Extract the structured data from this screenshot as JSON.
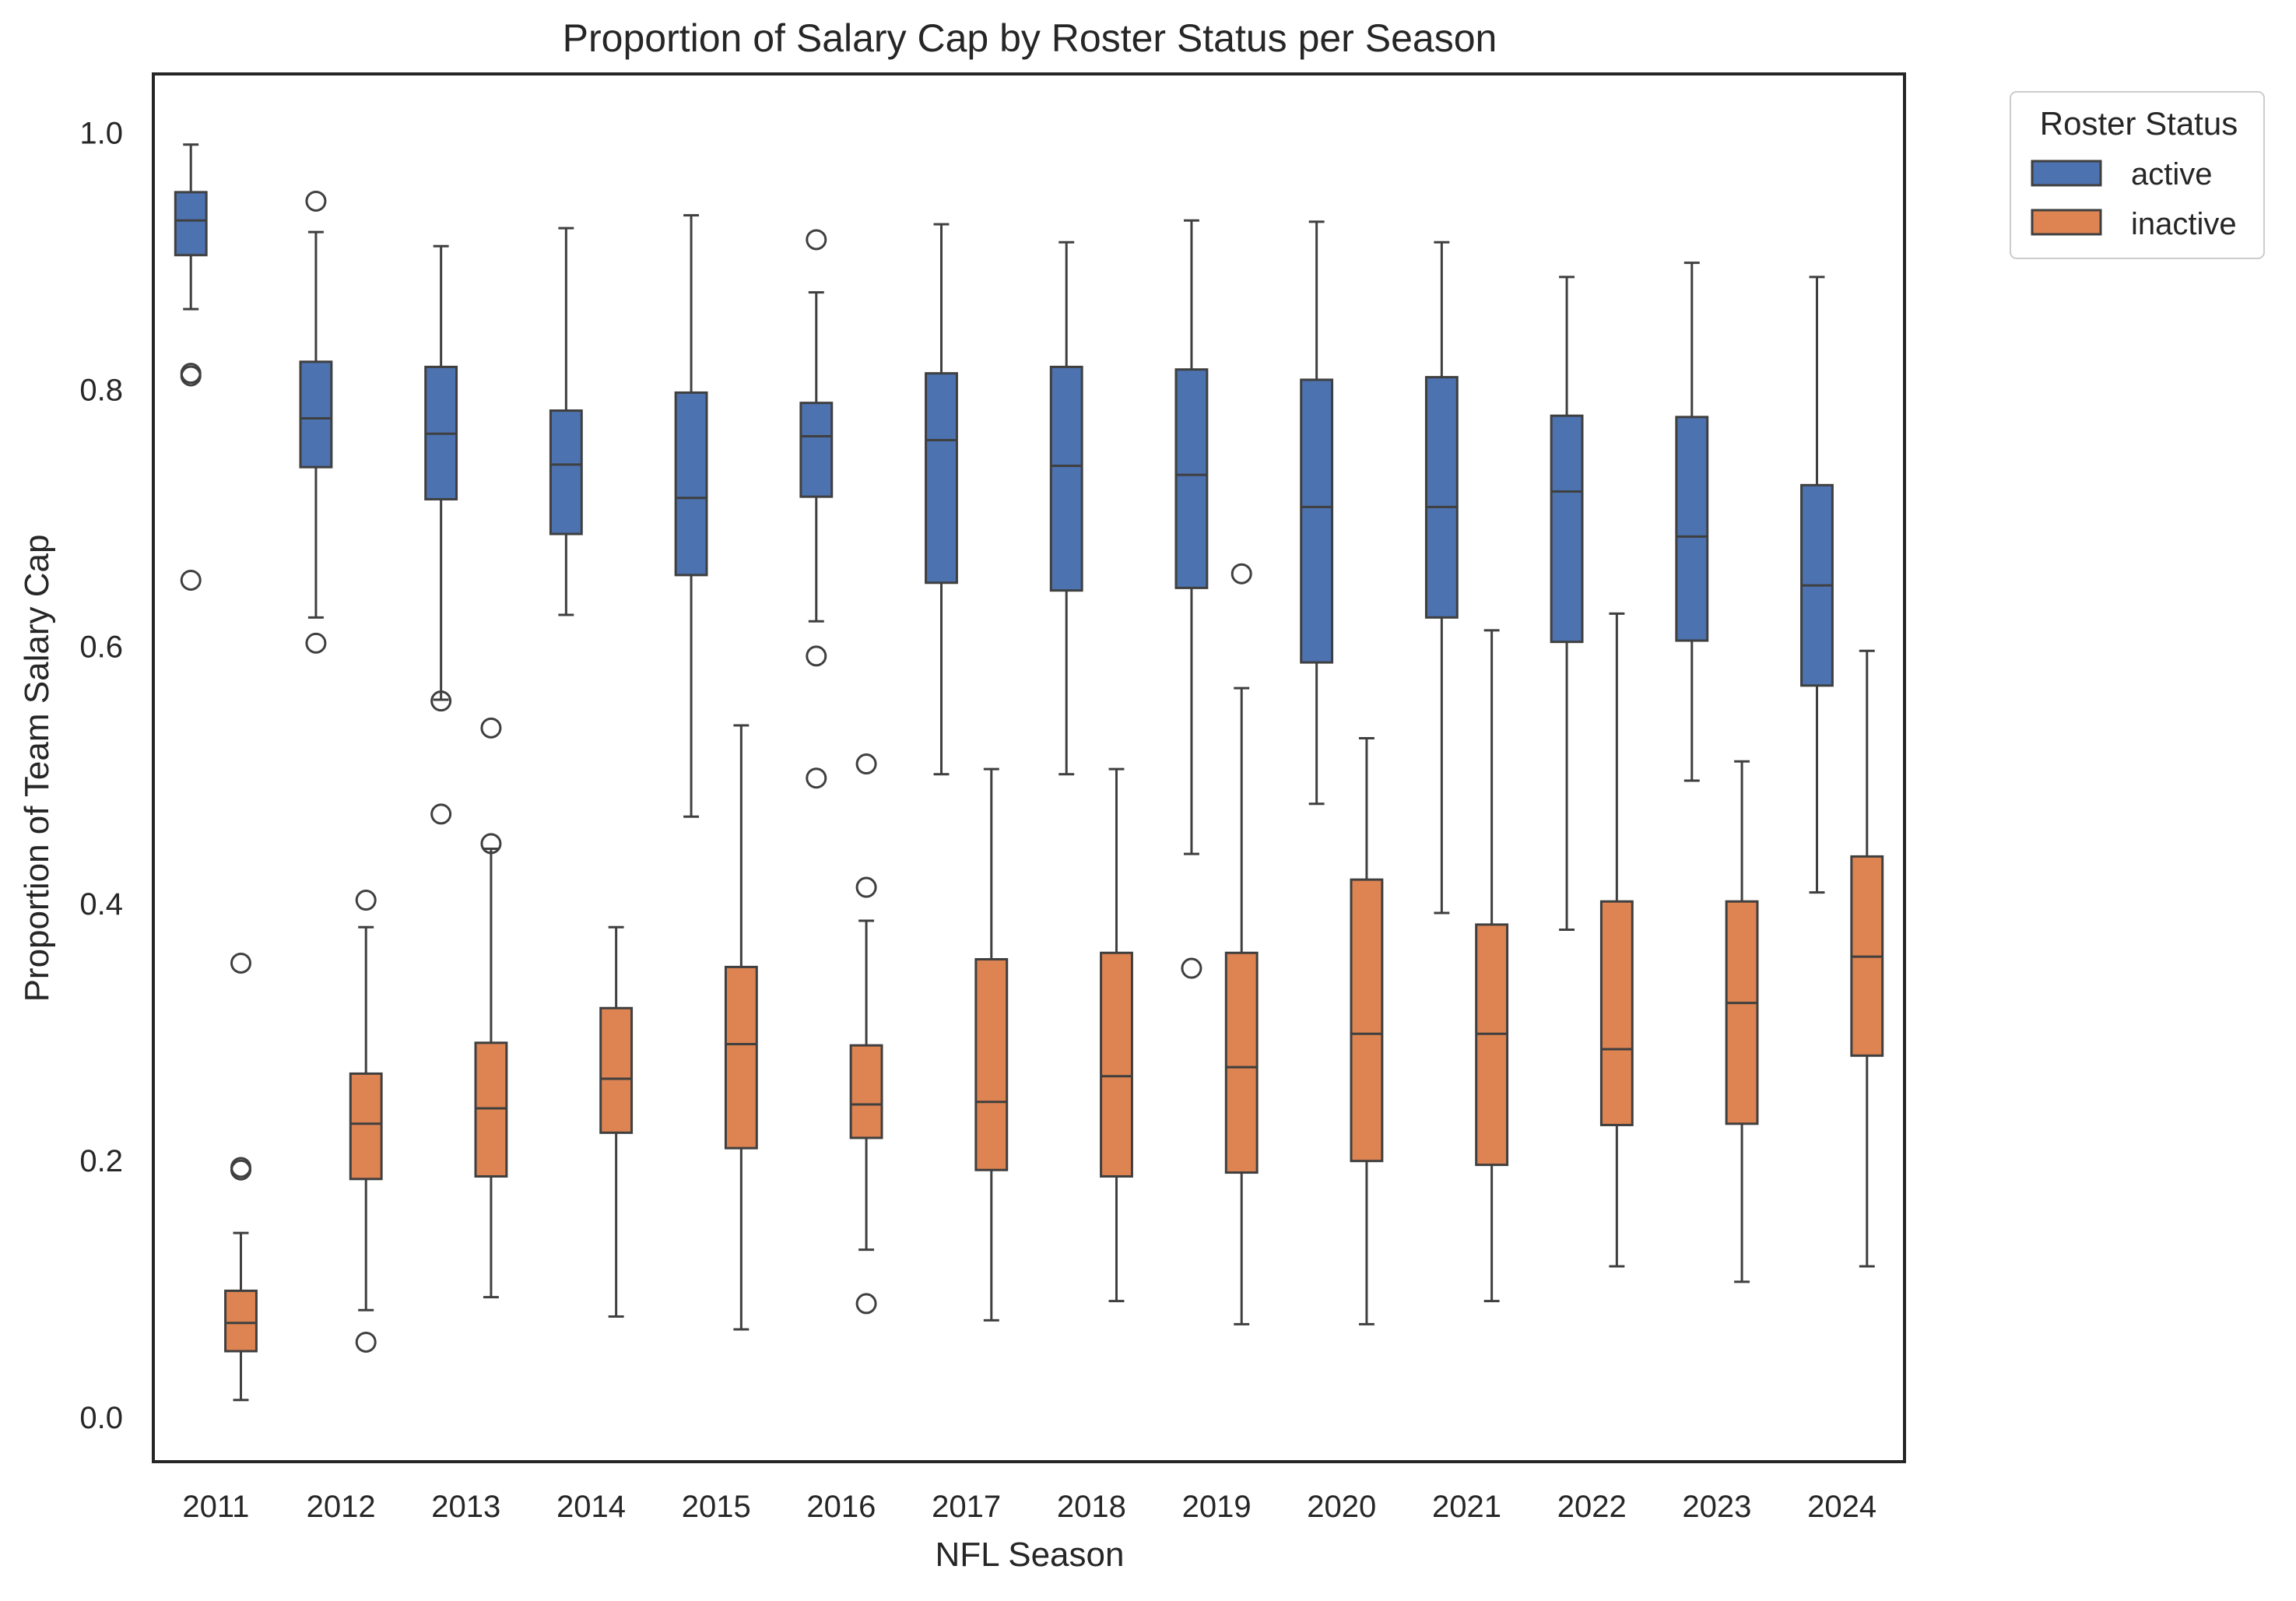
{
  "chart_data": {
    "type": "box",
    "title": "Proportion of Salary Cap by Roster Status per Season",
    "xlabel": "NFL Season",
    "ylabel": "Proportion of Team Salary Cap",
    "ylim": [
      -0.035,
      1.045
    ],
    "yticks": [
      0.0,
      0.2,
      0.4,
      0.6,
      0.8,
      1.0
    ],
    "ytick_labels": [
      "0.0",
      "0.2",
      "0.4",
      "0.6",
      "0.8",
      "1.0"
    ],
    "grid": false,
    "legend": {
      "title": "Roster Status",
      "placement": "outside-top-right"
    },
    "categories": [
      "2011",
      "2012",
      "2013",
      "2014",
      "2015",
      "2016",
      "2017",
      "2018",
      "2019",
      "2020",
      "2021",
      "2022",
      "2023",
      "2024"
    ],
    "series": [
      {
        "name": "active",
        "color": "#4c72b0",
        "boxes": [
          {
            "whislo": 0.862,
            "q1": 0.904,
            "med": 0.931,
            "q3": 0.953,
            "whishi": 0.99,
            "fliers": [
              0.812,
              0.81,
              0.651
            ]
          },
          {
            "whislo": 0.622,
            "q1": 0.739,
            "med": 0.777,
            "q3": 0.821,
            "whishi": 0.922,
            "fliers": [
              0.946,
              0.602
            ]
          },
          {
            "whislo": 0.558,
            "q1": 0.714,
            "med": 0.765,
            "q3": 0.817,
            "whishi": 0.911,
            "fliers": [
              0.557,
              0.469
            ]
          },
          {
            "whislo": 0.624,
            "q1": 0.687,
            "med": 0.741,
            "q3": 0.783,
            "whishi": 0.925,
            "fliers": []
          },
          {
            "whislo": 0.467,
            "q1": 0.655,
            "med": 0.715,
            "q3": 0.797,
            "whishi": 0.935,
            "fliers": []
          },
          {
            "whislo": 0.619,
            "q1": 0.716,
            "med": 0.763,
            "q3": 0.789,
            "whishi": 0.875,
            "fliers": [
              0.916,
              0.592,
              0.497
            ]
          },
          {
            "whislo": 0.5,
            "q1": 0.649,
            "med": 0.76,
            "q3": 0.812,
            "whishi": 0.928,
            "fliers": []
          },
          {
            "whislo": 0.5,
            "q1": 0.643,
            "med": 0.74,
            "q3": 0.817,
            "whishi": 0.914,
            "fliers": []
          },
          {
            "whislo": 0.438,
            "q1": 0.645,
            "med": 0.733,
            "q3": 0.815,
            "whishi": 0.931,
            "fliers": [
              0.349
            ]
          },
          {
            "whislo": 0.477,
            "q1": 0.587,
            "med": 0.708,
            "q3": 0.807,
            "whishi": 0.93,
            "fliers": []
          },
          {
            "whislo": 0.392,
            "q1": 0.622,
            "med": 0.708,
            "q3": 0.809,
            "whishi": 0.914,
            "fliers": []
          },
          {
            "whislo": 0.379,
            "q1": 0.603,
            "med": 0.72,
            "q3": 0.779,
            "whishi": 0.887,
            "fliers": []
          },
          {
            "whislo": 0.495,
            "q1": 0.604,
            "med": 0.685,
            "q3": 0.778,
            "whishi": 0.898,
            "fliers": []
          },
          {
            "whislo": 0.408,
            "q1": 0.569,
            "med": 0.647,
            "q3": 0.725,
            "whishi": 0.887,
            "fliers": []
          }
        ]
      },
      {
        "name": "inactive",
        "color": "#dd8452",
        "boxes": [
          {
            "whislo": 0.013,
            "q1": 0.051,
            "med": 0.073,
            "q3": 0.098,
            "whishi": 0.143,
            "fliers": [
              0.353,
              0.194,
              0.192
            ]
          },
          {
            "whislo": 0.083,
            "q1": 0.185,
            "med": 0.228,
            "q3": 0.267,
            "whishi": 0.381,
            "fliers": [
              0.402,
              0.058
            ]
          },
          {
            "whislo": 0.093,
            "q1": 0.187,
            "med": 0.24,
            "q3": 0.291,
            "whishi": 0.442,
            "fliers": [
              0.536,
              0.446
            ]
          },
          {
            "whislo": 0.078,
            "q1": 0.221,
            "med": 0.263,
            "q3": 0.318,
            "whishi": 0.381,
            "fliers": []
          },
          {
            "whislo": 0.068,
            "q1": 0.209,
            "med": 0.29,
            "q3": 0.35,
            "whishi": 0.538,
            "fliers": []
          },
          {
            "whislo": 0.13,
            "q1": 0.217,
            "med": 0.243,
            "q3": 0.289,
            "whishi": 0.386,
            "fliers": [
              0.508,
              0.412,
              0.088
            ]
          },
          {
            "whislo": 0.075,
            "q1": 0.192,
            "med": 0.245,
            "q3": 0.356,
            "whishi": 0.504,
            "fliers": []
          },
          {
            "whislo": 0.09,
            "q1": 0.187,
            "med": 0.265,
            "q3": 0.361,
            "whishi": 0.504,
            "fliers": []
          },
          {
            "whislo": 0.072,
            "q1": 0.19,
            "med": 0.272,
            "q3": 0.361,
            "whishi": 0.567,
            "fliers": [
              0.656
            ]
          },
          {
            "whislo": 0.072,
            "q1": 0.199,
            "med": 0.298,
            "q3": 0.418,
            "whishi": 0.528,
            "fliers": []
          },
          {
            "whislo": 0.09,
            "q1": 0.196,
            "med": 0.298,
            "q3": 0.383,
            "whishi": 0.612,
            "fliers": []
          },
          {
            "whislo": 0.117,
            "q1": 0.227,
            "med": 0.286,
            "q3": 0.401,
            "whishi": 0.625,
            "fliers": []
          },
          {
            "whislo": 0.105,
            "q1": 0.228,
            "med": 0.322,
            "q3": 0.401,
            "whishi": 0.51,
            "fliers": []
          },
          {
            "whislo": 0.117,
            "q1": 0.281,
            "med": 0.358,
            "q3": 0.436,
            "whishi": 0.596,
            "fliers": []
          }
        ]
      }
    ]
  }
}
